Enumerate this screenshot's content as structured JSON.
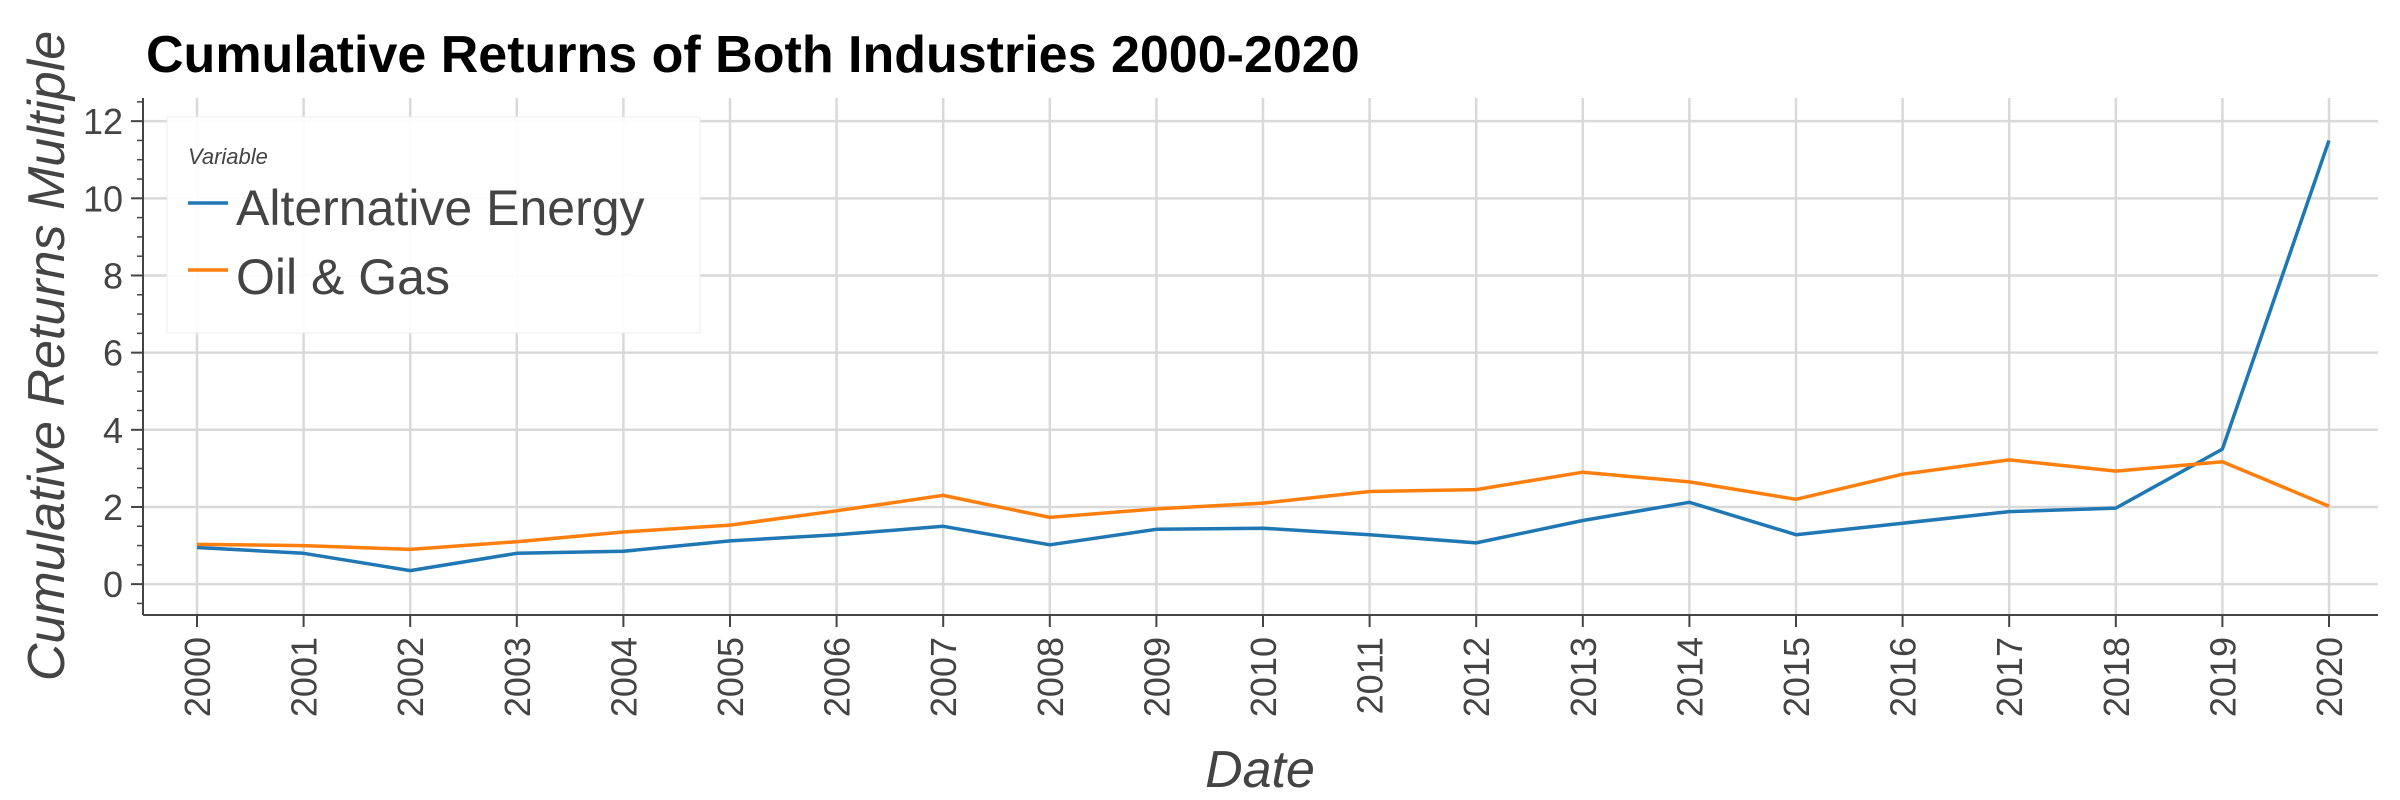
{
  "chart_data": {
    "type": "line",
    "title": "Cumulative Returns of Both Industries 2000-2020",
    "xlabel": "Date",
    "ylabel": "Cumulative Returns Multiple",
    "categories": [
      "2000",
      "2001",
      "2002",
      "2003",
      "2004",
      "2005",
      "2006",
      "2007",
      "2008",
      "2009",
      "2010",
      "2011",
      "2012",
      "2013",
      "2014",
      "2015",
      "2016",
      "2017",
      "2018",
      "2019",
      "2020"
    ],
    "series": [
      {
        "name": "Alternative Energy",
        "color": "#1f77b4",
        "values": [
          0.95,
          0.8,
          0.35,
          0.8,
          0.85,
          1.12,
          1.28,
          1.5,
          1.02,
          1.42,
          1.45,
          1.28,
          1.07,
          1.65,
          2.12,
          1.28,
          1.58,
          1.88,
          1.97,
          3.5,
          11.5
        ]
      },
      {
        "name": "Oil & Gas",
        "color": "#ff7f0e",
        "values": [
          1.03,
          1.0,
          0.9,
          1.1,
          1.35,
          1.53,
          1.9,
          2.3,
          1.73,
          1.95,
          2.1,
          2.4,
          2.45,
          2.9,
          2.65,
          2.2,
          2.85,
          3.22,
          2.93,
          3.17,
          2.02
        ]
      }
    ],
    "ylim": [
      -0.8,
      12.6
    ],
    "yticks": [
      0,
      2,
      4,
      6,
      8,
      10,
      12
    ],
    "grid": true,
    "legend": {
      "title": "Variable",
      "placement": "top-left"
    }
  }
}
